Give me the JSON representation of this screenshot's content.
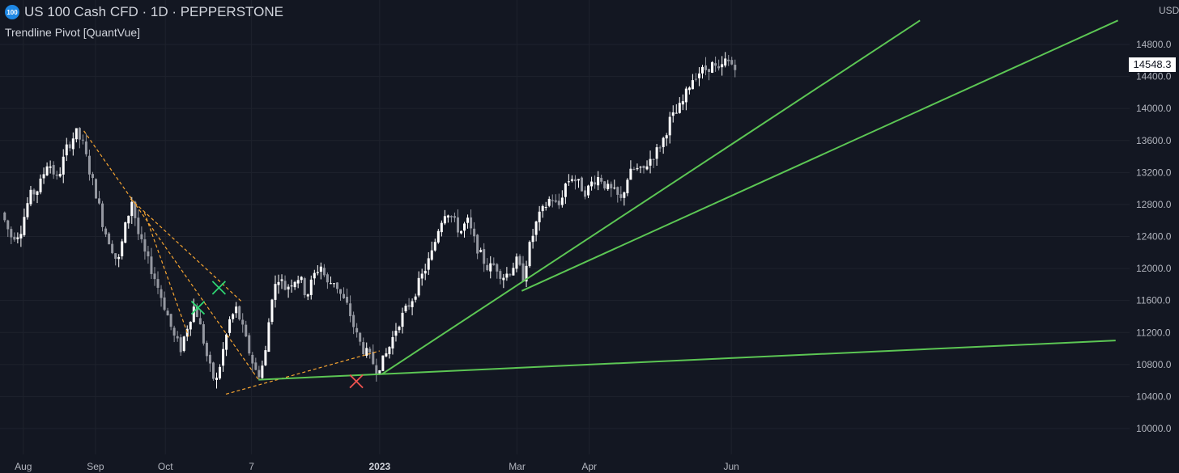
{
  "header": {
    "symbol_badge": "100",
    "title": "US 100 Cash CFD · 1D · PEPPERSTONE",
    "indicator": "Trendline Pivot [QuantVue]"
  },
  "chart_data": {
    "type": "candlestick",
    "currency_label": "USD",
    "ylim": [
      9700,
      15100
    ],
    "y_ticks": [
      10000,
      10400,
      10800,
      11200,
      11600,
      12000,
      12400,
      12800,
      13200,
      13600,
      14000,
      14400,
      14800
    ],
    "y_tick_labels": [
      "10000.0",
      "10400.0",
      "10800.0",
      "11200.0",
      "11600.0",
      "12000.0",
      "12400.0",
      "12800.0",
      "13200.0",
      "13600.0",
      "14000.0",
      "14400.0",
      "14800.0"
    ],
    "last_price": "14548.3",
    "x_labels": [
      {
        "label": "Aug",
        "day": 0
      },
      {
        "label": "Sep",
        "day": 31
      },
      {
        "label": "Oct",
        "day": 61
      },
      {
        "label": "7",
        "day": 98
      },
      {
        "label": "2023",
        "day": 153,
        "bold": true
      },
      {
        "label": "Mar",
        "day": 212
      },
      {
        "label": "Apr",
        "day": 243
      },
      {
        "label": "Jun",
        "day": 304
      }
    ],
    "x_range_days": [
      -10,
      475
    ],
    "price_path": [
      [
        -8,
        12700
      ],
      [
        -4,
        12400
      ],
      [
        0,
        12450
      ],
      [
        4,
        12900
      ],
      [
        8,
        13000
      ],
      [
        12,
        13350
      ],
      [
        16,
        13100
      ],
      [
        20,
        13500
      ],
      [
        24,
        13700
      ],
      [
        27,
        13550
      ],
      [
        30,
        13200
      ],
      [
        33,
        12900
      ],
      [
        36,
        12500
      ],
      [
        39,
        12300
      ],
      [
        42,
        12050
      ],
      [
        45,
        12500
      ],
      [
        48,
        12850
      ],
      [
        51,
        12400
      ],
      [
        54,
        12150
      ],
      [
        57,
        11950
      ],
      [
        60,
        11700
      ],
      [
        63,
        11450
      ],
      [
        66,
        11150
      ],
      [
        69,
        11000
      ],
      [
        72,
        11300
      ],
      [
        75,
        11550
      ],
      [
        78,
        11200
      ],
      [
        81,
        10800
      ],
      [
        84,
        10550
      ],
      [
        87,
        10950
      ],
      [
        90,
        11350
      ],
      [
        93,
        11500
      ],
      [
        96,
        11200
      ],
      [
        99,
        10900
      ],
      [
        102,
        10650
      ],
      [
        105,
        10850
      ],
      [
        108,
        11650
      ],
      [
        111,
        11900
      ],
      [
        114,
        11750
      ],
      [
        117,
        11850
      ],
      [
        120,
        11900
      ],
      [
        123,
        11650
      ],
      [
        126,
        11900
      ],
      [
        129,
        12050
      ],
      [
        132,
        11800
      ],
      [
        135,
        11850
      ],
      [
        138,
        11650
      ],
      [
        141,
        11500
      ],
      [
        144,
        11200
      ],
      [
        147,
        11000
      ],
      [
        150,
        10900
      ],
      [
        153,
        10750
      ],
      [
        156,
        10850
      ],
      [
        159,
        11050
      ],
      [
        162,
        11300
      ],
      [
        165,
        11450
      ],
      [
        168,
        11600
      ],
      [
        171,
        11800
      ],
      [
        174,
        12000
      ],
      [
        177,
        12200
      ],
      [
        180,
        12550
      ],
      [
        183,
        12750
      ],
      [
        186,
        12600
      ],
      [
        189,
        12450
      ],
      [
        192,
        12600
      ],
      [
        195,
        12350
      ],
      [
        198,
        12150
      ],
      [
        201,
        12000
      ],
      [
        204,
        12050
      ],
      [
        207,
        11900
      ],
      [
        210,
        11950
      ],
      [
        213,
        12100
      ],
      [
        216,
        11900
      ],
      [
        219,
        12300
      ],
      [
        222,
        12600
      ],
      [
        225,
        12750
      ],
      [
        228,
        12900
      ],
      [
        231,
        12750
      ],
      [
        234,
        13050
      ],
      [
        237,
        13150
      ],
      [
        240,
        13050
      ],
      [
        243,
        12950
      ],
      [
        246,
        13100
      ],
      [
        249,
        13150
      ],
      [
        252,
        13000
      ],
      [
        255,
        12950
      ],
      [
        258,
        12850
      ],
      [
        261,
        13150
      ],
      [
        264,
        13250
      ],
      [
        267,
        13200
      ],
      [
        270,
        13350
      ],
      [
        273,
        13450
      ],
      [
        276,
        13600
      ],
      [
        279,
        13850
      ],
      [
        282,
        13950
      ],
      [
        285,
        14100
      ],
      [
        288,
        14350
      ],
      [
        291,
        14450
      ],
      [
        294,
        14480
      ],
      [
        297,
        14550
      ],
      [
        300,
        14450
      ],
      [
        303,
        14600
      ],
      [
        306,
        14548
      ]
    ],
    "pivot_trendlines": [
      [
        [
          26,
          13720
        ],
        [
          101,
          10610
        ]
      ],
      [
        [
          46,
          12870
        ],
        [
          94,
          11580
        ]
      ],
      [
        [
          52,
          12700
        ],
        [
          71,
          11150
        ]
      ],
      [
        [
          87,
          10430
        ],
        [
          153,
          10970
        ]
      ]
    ],
    "breakout_trendlines": [
      [
        [
          101,
          10610
        ],
        [
          469,
          11100
        ]
      ],
      [
        [
          154,
          10680
        ],
        [
          385,
          15100
        ]
      ],
      [
        [
          214,
          11720
        ],
        [
          470,
          15100
        ]
      ]
    ],
    "signal_markers": [
      {
        "day": 75,
        "price": 11510,
        "type": "buy",
        "color": "#2ed573"
      },
      {
        "day": 84,
        "price": 11760,
        "type": "buy",
        "color": "#2ed573"
      },
      {
        "day": 143,
        "price": 10590,
        "type": "sell",
        "color": "#ef5350"
      }
    ],
    "colors": {
      "background": "#131722",
      "grid": "#1e222d",
      "candle_up": "#ffffff",
      "candle_down": "#9598a1",
      "pivot_line": "#f7a531",
      "breakout_line": "#5cc654",
      "axis_text": "#b2b5be"
    }
  }
}
